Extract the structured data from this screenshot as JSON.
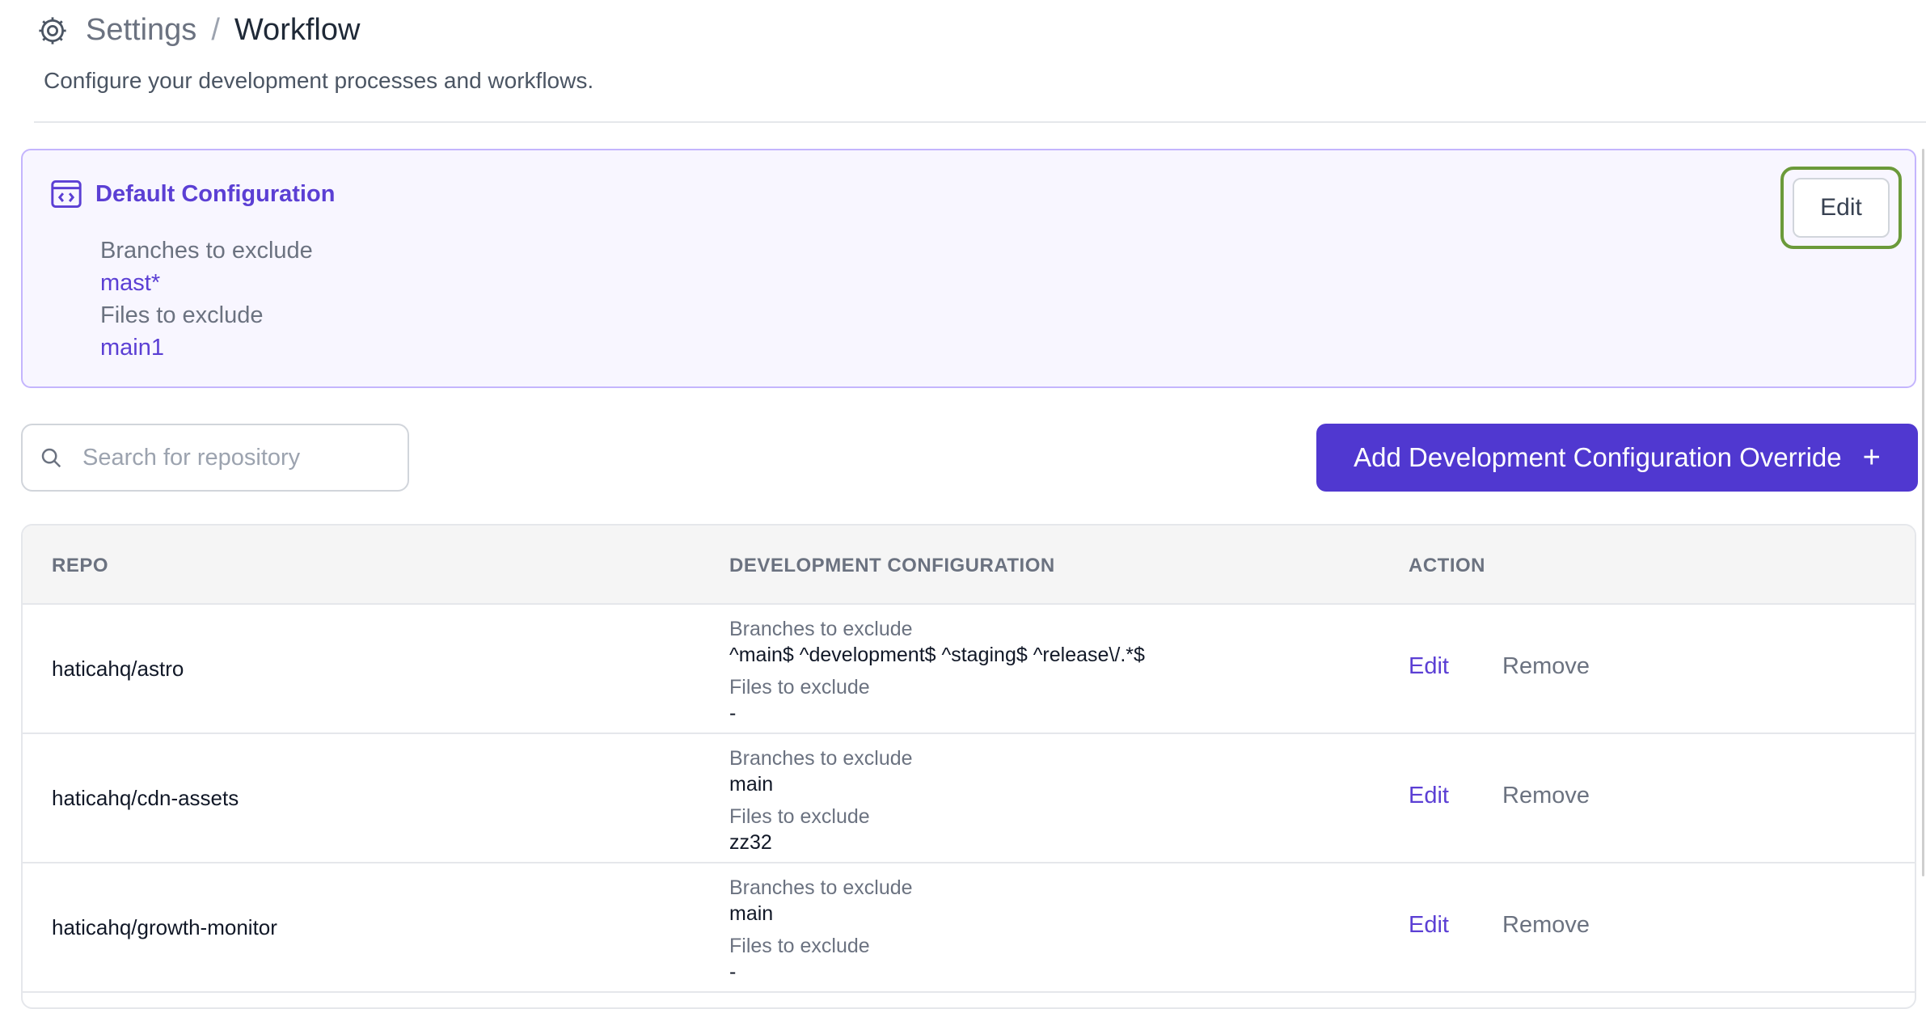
{
  "header": {
    "breadcrumb_settings": "Settings",
    "breadcrumb_separator": "/",
    "breadcrumb_current": "Workflow",
    "subtitle": "Configure your development processes and workflows.",
    "icon": "gear-icon"
  },
  "default_config": {
    "title": "Default Configuration",
    "icon": "code-window-icon",
    "branches_label": "Branches to exclude",
    "branches_value": "mast*",
    "files_label": "Files to exclude",
    "files_value": "main1",
    "edit_label": "Edit"
  },
  "search": {
    "placeholder": "Search for repository",
    "value": "",
    "icon": "search-icon"
  },
  "add_button": {
    "label": "Add Development Configuration Override",
    "icon": "plus-icon",
    "glyph": "+"
  },
  "table": {
    "headers": {
      "repo": "REPO",
      "config": "DEVELOPMENT CONFIGURATION",
      "action": "ACTION"
    },
    "rows": [
      {
        "repo": "haticahq/astro",
        "branches_label": "Branches to exclude",
        "branches_value": "^main$ ^development$ ^staging$ ^release\\/.*$",
        "files_label": "Files to exclude",
        "files_value": "-",
        "edit": "Edit",
        "remove": "Remove"
      },
      {
        "repo": "haticahq/cdn-assets",
        "branches_label": "Branches to exclude",
        "branches_value": "main",
        "files_label": "Files to exclude",
        "files_value": "zz32",
        "edit": "Edit",
        "remove": "Remove"
      },
      {
        "repo": "haticahq/growth-monitor",
        "branches_label": "Branches to exclude",
        "branches_value": "main",
        "files_label": "Files to exclude",
        "files_value": "-",
        "edit": "Edit",
        "remove": "Remove"
      }
    ]
  },
  "colors": {
    "accent": "#5b3fd4",
    "primary_button": "#5038d0",
    "card_border": "#c4b5fd",
    "card_background": "#f8f6ff",
    "focus_ring": "#6b9a3a"
  }
}
